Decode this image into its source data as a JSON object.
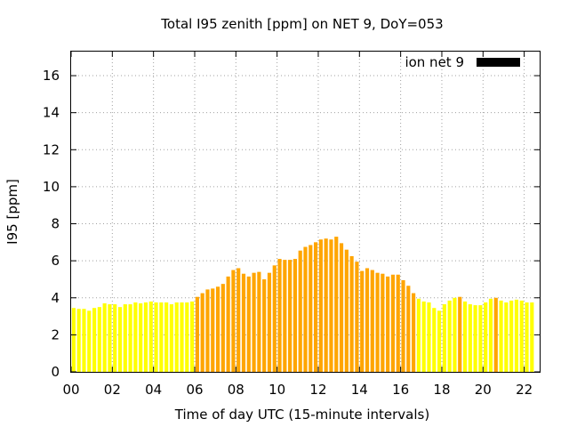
{
  "chart_data": {
    "type": "bar",
    "title": "Total I95 zenith [ppm] on NET 9, DoY=053",
    "xlabel": "Time of day UTC (15-minute intervals)",
    "ylabel": "I95 [ppm]",
    "xlim": [
      0,
      22.75
    ],
    "ylim": [
      0,
      17.3
    ],
    "x_ticks": [
      0,
      2,
      4,
      6,
      8,
      10,
      12,
      14,
      16,
      18,
      20,
      22
    ],
    "x_tick_labels": [
      "00",
      "02",
      "04",
      "06",
      "08",
      "10",
      "12",
      "14",
      "16",
      "18",
      "20",
      "22"
    ],
    "y_ticks": [
      0,
      2,
      4,
      6,
      8,
      10,
      12,
      14,
      16
    ],
    "y_tick_labels": [
      "0",
      "2",
      "4",
      "6",
      "8",
      "10",
      "12",
      "14",
      "16"
    ],
    "grid": true,
    "legend": {
      "position": "top-right",
      "entries": [
        {
          "label": "ion net 9",
          "color": "#000000"
        }
      ]
    },
    "colors": {
      "low": "#ffff00",
      "high": "#ffa500"
    },
    "interval_hours": 0.25,
    "values": [
      3.45,
      3.4,
      3.4,
      3.3,
      3.45,
      3.5,
      3.7,
      3.65,
      3.65,
      3.5,
      3.65,
      3.65,
      3.75,
      3.7,
      3.75,
      3.8,
      3.75,
      3.75,
      3.75,
      3.65,
      3.75,
      3.75,
      3.75,
      3.8,
      4.05,
      4.25,
      4.45,
      4.5,
      4.6,
      4.75,
      5.15,
      5.5,
      5.6,
      5.3,
      5.15,
      5.35,
      5.4,
      5.0,
      5.35,
      5.75,
      6.1,
      6.05,
      6.05,
      6.1,
      6.55,
      6.75,
      6.85,
      7.0,
      7.15,
      7.2,
      7.15,
      7.3,
      6.95,
      6.6,
      6.25,
      5.95,
      5.45,
      5.6,
      5.5,
      5.35,
      5.3,
      5.15,
      5.25,
      5.25,
      4.95,
      4.65,
      4.25,
      3.95,
      3.8,
      3.75,
      3.45,
      3.3,
      3.65,
      3.85,
      4.0,
      4.05,
      3.8,
      3.65,
      3.6,
      3.6,
      3.75,
      3.95,
      4.0,
      3.85,
      3.75,
      3.85,
      3.9,
      3.85,
      3.75,
      3.75
    ],
    "is_high": [
      0,
      0,
      0,
      0,
      0,
      0,
      0,
      0,
      0,
      0,
      0,
      0,
      0,
      0,
      0,
      0,
      0,
      0,
      0,
      0,
      0,
      0,
      0,
      0,
      1,
      1,
      1,
      1,
      1,
      1,
      1,
      1,
      1,
      1,
      1,
      1,
      1,
      1,
      1,
      1,
      1,
      1,
      1,
      1,
      1,
      1,
      1,
      1,
      1,
      1,
      1,
      1,
      1,
      1,
      1,
      1,
      1,
      1,
      1,
      1,
      1,
      1,
      1,
      1,
      1,
      1,
      1,
      0,
      0,
      0,
      0,
      0,
      0,
      0,
      0,
      1,
      0,
      0,
      0,
      0,
      0,
      0,
      1,
      0,
      0,
      0,
      0,
      0,
      0,
      0
    ]
  }
}
